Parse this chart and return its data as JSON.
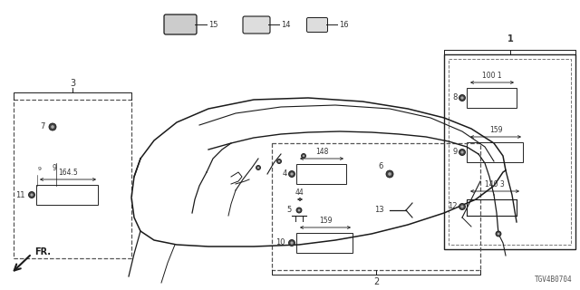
{
  "bg_color": "#ffffff",
  "lc": "#1a1a1a",
  "diagram_code": "TGV4B0704",
  "figsize": [
    6.4,
    3.2
  ],
  "dpi": 100
}
